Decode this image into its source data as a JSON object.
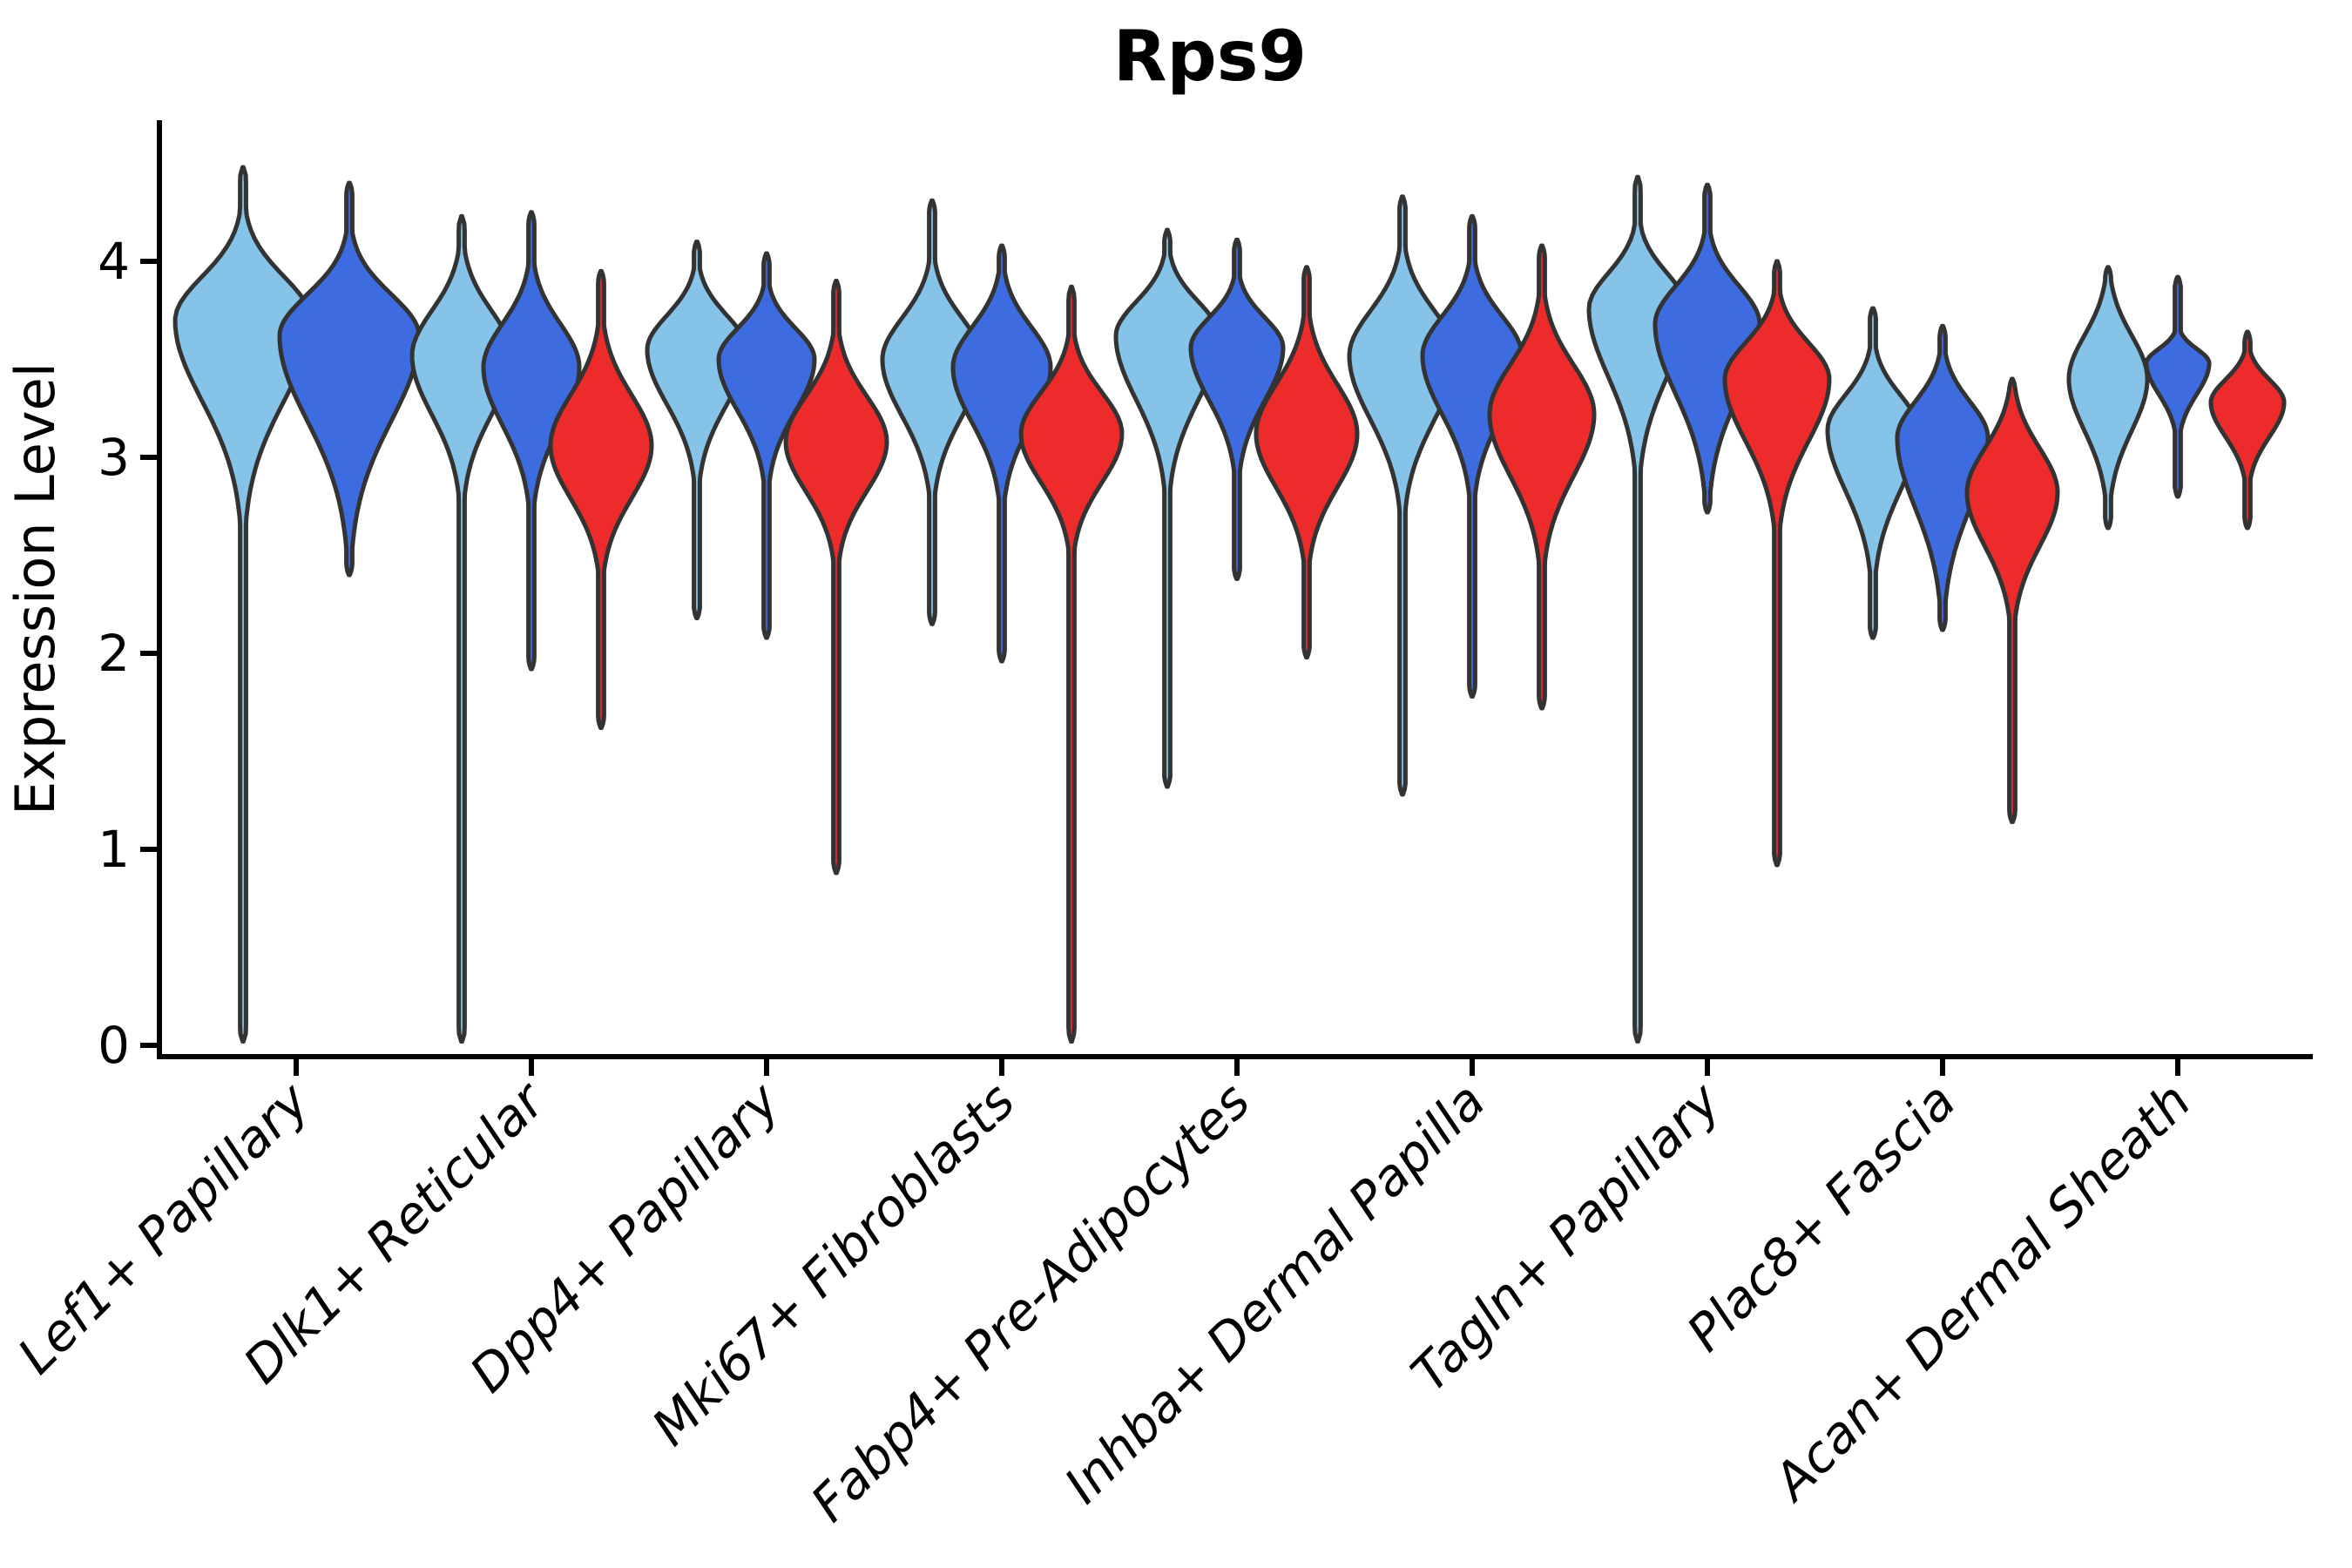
{
  "figure": {
    "title": "Rps9",
    "ylabel": "Expression Level"
  },
  "chart_data": {
    "type": "violin",
    "title": "Rps9",
    "xlabel": "",
    "ylabel": "Expression Level",
    "yticks": [
      "0",
      "1",
      "2",
      "3",
      "4"
    ],
    "ylim": [
      -0.06,
      4.72
    ],
    "grid": false,
    "legend_position": "none",
    "categories": [
      "Lef1+ Papillary",
      "Dlk1+ Reticular",
      "Dpp4+ Papillary",
      "Mki67+ Fibroblasts",
      "Fabp4+ Pre-Adipocytes",
      "Inhba+ Dermal Papilla",
      "Tagln+ Papillary",
      "Plac8+ Fascia",
      "Acan+ Dermal Sheath"
    ],
    "colors": {
      "lightblue": "#85C3E8",
      "blue": "#3D6BE0",
      "red": "#EE2B2B",
      "outline": "#333333",
      "axis": "#000000"
    },
    "groups": [
      {
        "label": "Lef1+ Papillary",
        "violins": [
          {
            "series": "lightblue",
            "max": 4.48,
            "shoulder": 4.12,
            "mode": 3.7,
            "pinch": 2.92,
            "min": 0.02,
            "halfwidth": 78
          },
          {
            "series": "blue",
            "max": 4.4,
            "shoulder": 4.02,
            "mode": 3.62,
            "pinch": 2.8,
            "min": 2.4,
            "halfwidth": 80
          }
        ]
      },
      {
        "label": "Dlk1+ Reticular",
        "violins": [
          {
            "series": "lightblue",
            "max": 4.23,
            "shoulder": 3.95,
            "mode": 3.52,
            "pinch": 2.95,
            "min": 0.02,
            "halfwidth": 57
          },
          {
            "series": "blue",
            "max": 4.25,
            "shoulder": 3.88,
            "mode": 3.46,
            "pinch": 2.9,
            "min": 1.92,
            "halfwidth": 55
          },
          {
            "series": "red",
            "max": 3.95,
            "shoulder": 3.55,
            "mode": 3.06,
            "pinch": 2.55,
            "min": 1.62,
            "halfwidth": 58
          }
        ]
      },
      {
        "label": "Dpp4+ Papillary",
        "violins": [
          {
            "series": "lightblue",
            "max": 4.1,
            "shoulder": 3.88,
            "mode": 3.55,
            "pinch": 3.02,
            "min": 2.18,
            "halfwidth": 57
          },
          {
            "series": "blue",
            "max": 4.04,
            "shoulder": 3.8,
            "mode": 3.5,
            "pinch": 3.0,
            "min": 2.08,
            "halfwidth": 55
          },
          {
            "series": "red",
            "max": 3.9,
            "shoulder": 3.52,
            "mode": 3.08,
            "pinch": 2.6,
            "min": 0.88,
            "halfwidth": 58
          }
        ]
      },
      {
        "label": "Mki67+ Fibroblasts",
        "violins": [
          {
            "series": "lightblue",
            "max": 4.31,
            "shoulder": 3.9,
            "mode": 3.5,
            "pinch": 2.95,
            "min": 2.15,
            "halfwidth": 57
          },
          {
            "series": "blue",
            "max": 4.08,
            "shoulder": 3.85,
            "mode": 3.46,
            "pinch": 2.92,
            "min": 1.96,
            "halfwidth": 56
          },
          {
            "series": "red",
            "max": 3.87,
            "shoulder": 3.52,
            "mode": 3.12,
            "pinch": 2.65,
            "min": 0.02,
            "halfwidth": 58
          }
        ]
      },
      {
        "label": "Fabp4+ Pre-Adipocytes",
        "violins": [
          {
            "series": "lightblue",
            "max": 4.16,
            "shoulder": 3.95,
            "mode": 3.62,
            "pinch": 3.0,
            "min": 1.32,
            "halfwidth": 59
          },
          {
            "series": "blue",
            "max": 4.11,
            "shoulder": 3.85,
            "mode": 3.56,
            "pinch": 3.05,
            "min": 2.38,
            "halfwidth": 53
          },
          {
            "series": "red",
            "max": 3.97,
            "shoulder": 3.6,
            "mode": 3.12,
            "pinch": 2.6,
            "min": 1.98,
            "halfwidth": 58
          }
        ]
      },
      {
        "label": "Inhba+ Dermal Papilla",
        "violins": [
          {
            "series": "lightblue",
            "max": 4.33,
            "shoulder": 3.95,
            "mode": 3.52,
            "pinch": 2.9,
            "min": 1.28,
            "halfwidth": 61
          },
          {
            "series": "blue",
            "max": 4.23,
            "shoulder": 3.9,
            "mode": 3.52,
            "pinch": 2.95,
            "min": 1.78,
            "halfwidth": 57
          },
          {
            "series": "red",
            "max": 4.08,
            "shoulder": 3.7,
            "mode": 3.22,
            "pinch": 2.62,
            "min": 1.72,
            "halfwidth": 60
          }
        ]
      },
      {
        "label": "Tagln+ Papillary",
        "violins": [
          {
            "series": "lightblue",
            "max": 4.43,
            "shoulder": 4.1,
            "mode": 3.76,
            "pinch": 3.1,
            "min": 0.02,
            "halfwidth": 56
          },
          {
            "series": "blue",
            "max": 4.39,
            "shoulder": 4.05,
            "mode": 3.68,
            "pinch": 3.0,
            "min": 2.72,
            "halfwidth": 60
          },
          {
            "series": "red",
            "max": 4.0,
            "shoulder": 3.75,
            "mode": 3.4,
            "pinch": 2.8,
            "min": 0.92,
            "halfwidth": 60
          }
        ]
      },
      {
        "label": "Plac8+ Fascia",
        "violins": [
          {
            "series": "lightblue",
            "max": 3.76,
            "shoulder": 3.48,
            "mode": 3.14,
            "pinch": 2.55,
            "min": 2.08,
            "halfwidth": 52
          },
          {
            "series": "blue",
            "max": 3.67,
            "shoulder": 3.45,
            "mode": 3.1,
            "pinch": 2.42,
            "min": 2.12,
            "halfwidth": 52
          },
          {
            "series": "red",
            "max": 3.4,
            "shoulder": 3.25,
            "mode": 2.82,
            "pinch": 2.3,
            "min": 1.14,
            "halfwidth": 52
          }
        ]
      },
      {
        "label": "Acan+ Dermal Sheath",
        "violins": [
          {
            "series": "lightblue",
            "max": 3.97,
            "shoulder": 3.82,
            "mode": 3.4,
            "pinch": 2.9,
            "min": 2.64,
            "halfwidth": 45
          },
          {
            "series": "blue",
            "max": 3.92,
            "shoulder": 3.62,
            "mode": 3.48,
            "pinch": 3.18,
            "min": 2.8,
            "halfwidth": 36
          },
          {
            "series": "red",
            "max": 3.64,
            "shoulder": 3.5,
            "mode": 3.28,
            "pinch": 2.95,
            "min": 2.64,
            "halfwidth": 42
          }
        ]
      }
    ]
  }
}
